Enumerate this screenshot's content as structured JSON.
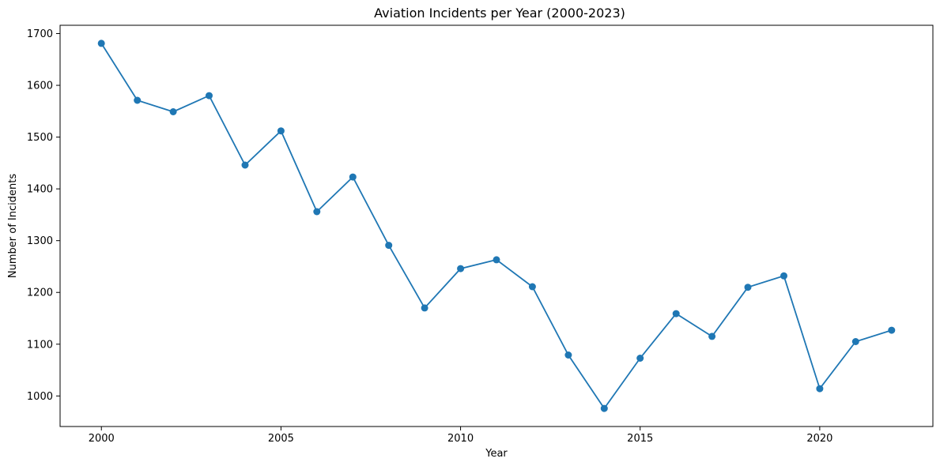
{
  "chart_data": {
    "type": "line",
    "title": "Aviation Incidents per Year (2000-2023)",
    "xlabel": "Year",
    "ylabel": "Number of Incidents",
    "x": [
      2000,
      2001,
      2002,
      2003,
      2004,
      2005,
      2006,
      2007,
      2008,
      2009,
      2010,
      2011,
      2012,
      2013,
      2014,
      2015,
      2016,
      2017,
      2018,
      2019,
      2020,
      2021,
      2022
    ],
    "series": [
      {
        "values": [
          1681,
          1571,
          1549,
          1580,
          1446,
          1512,
          1356,
          1423,
          1291,
          1170,
          1246,
          1263,
          1211,
          1079,
          976,
          1073,
          1159,
          1115,
          1210,
          1232,
          1014,
          1105,
          1127
        ],
        "color": "#1f77b4",
        "marker": "circle"
      }
    ],
    "xlim": [
      1998.85,
      2023.15
    ],
    "ylim": [
      941,
      1716
    ],
    "xticks": [
      2000,
      2005,
      2010,
      2015,
      2020
    ],
    "yticks": [
      1000,
      1100,
      1200,
      1300,
      1400,
      1500,
      1600,
      1700
    ],
    "grid": false,
    "legend": "none"
  }
}
